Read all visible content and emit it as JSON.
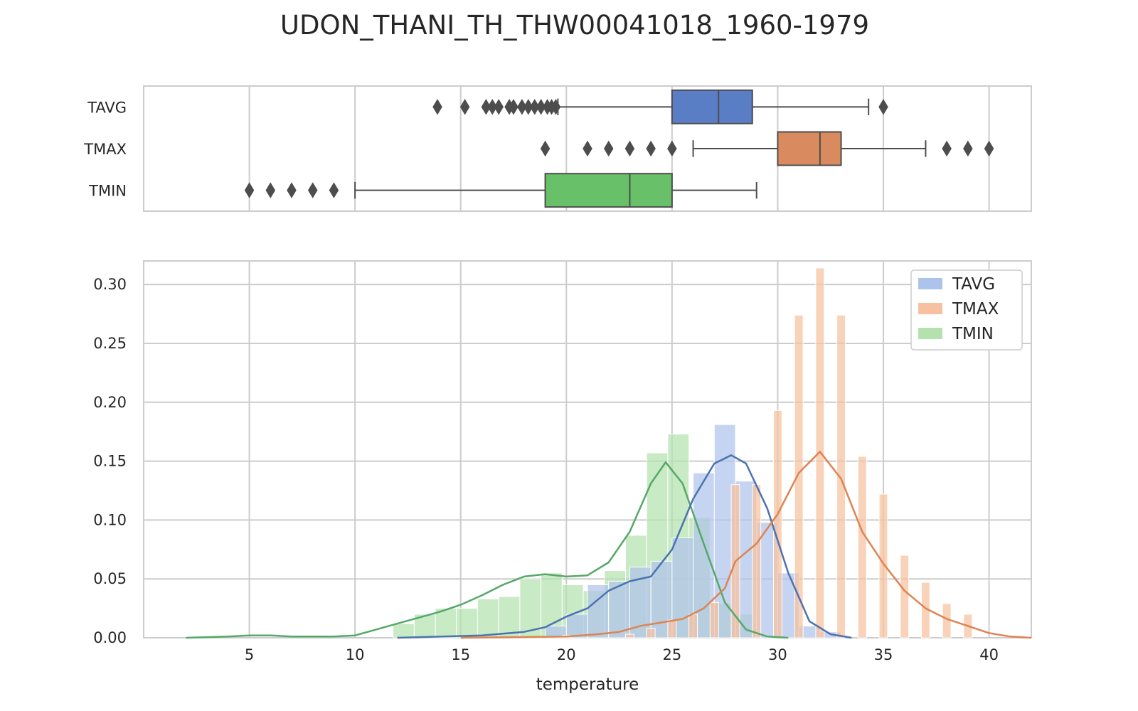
{
  "title": "UDON_THANI_TH_THW00041018_1960-1979",
  "xlabel": "temperature",
  "x_ticks": [
    "5",
    "10",
    "15",
    "20",
    "25",
    "30",
    "35",
    "40"
  ],
  "y_ticks": [
    "0.00",
    "0.05",
    "0.10",
    "0.15",
    "0.20",
    "0.25",
    "0.30"
  ],
  "legend": [
    "TAVG",
    "TMAX",
    "TMIN"
  ],
  "colors": {
    "TAVG": "#4c72b0",
    "TMAX": "#dd8452",
    "TMIN": "#55a868",
    "TAVG_box": "#5a7ec5",
    "TMAX_box": "#d98b5f",
    "TMIN_box": "#68c069",
    "TAVG_hist": "#aec3ea",
    "TMAX_hist": "#f7c0a0",
    "TMIN_hist": "#b3e2ae",
    "grid": "#cccccc",
    "frame": "#cccccc",
    "whisker": "#4d4d4d"
  },
  "chart_data": [
    {
      "type": "box",
      "orientation": "horizontal",
      "xlim": [
        0,
        42
      ],
      "categories": [
        "TAVG",
        "TMAX",
        "TMIN"
      ],
      "boxes": [
        {
          "name": "TAVG",
          "whislo": 19.6,
          "q1": 25.0,
          "median": 27.2,
          "q3": 28.8,
          "whishi": 34.3,
          "fliers": [
            13.9,
            15.2,
            16.2,
            16.5,
            16.8,
            17.3,
            17.5,
            17.9,
            18.2,
            18.5,
            18.8,
            19.1,
            19.3,
            19.5,
            35.0
          ]
        },
        {
          "name": "TMAX",
          "whislo": 26.0,
          "q1": 30.0,
          "median": 32.0,
          "q3": 33.0,
          "whishi": 37.0,
          "fliers": [
            19.0,
            21.0,
            22.0,
            23.0,
            24.0,
            25.0,
            38.0,
            39.0,
            40.0
          ]
        },
        {
          "name": "TMIN",
          "whislo": 10.0,
          "q1": 19.0,
          "median": 23.0,
          "q3": 25.0,
          "whishi": 29.0,
          "fliers": [
            5.0,
            6.0,
            7.0,
            8.0,
            9.0
          ]
        }
      ]
    },
    {
      "type": "histogram",
      "xlabel": "temperature",
      "xlim": [
        0,
        42
      ],
      "ylim": [
        0,
        0.32
      ],
      "grid": true,
      "legend_position": "top-right",
      "series": [
        {
          "name": "TMIN",
          "bins": [
            [
              11.8,
              12.8,
              0.012
            ],
            [
              12.8,
              13.8,
              0.02
            ],
            [
              13.8,
              14.8,
              0.025
            ],
            [
              14.8,
              15.8,
              0.025
            ],
            [
              15.8,
              16.8,
              0.033
            ],
            [
              16.8,
              17.8,
              0.035
            ],
            [
              17.8,
              18.8,
              0.05
            ],
            [
              18.8,
              19.8,
              0.055
            ],
            [
              19.8,
              20.8,
              0.045
            ],
            [
              20.8,
              21.8,
              0.04
            ],
            [
              21.8,
              22.8,
              0.057
            ],
            [
              22.8,
              23.8,
              0.087
            ],
            [
              23.8,
              24.8,
              0.157
            ],
            [
              24.8,
              25.8,
              0.173
            ],
            [
              25.8,
              26.8,
              0.102
            ],
            [
              26.8,
              27.8,
              0.029
            ],
            [
              27.8,
              28.8,
              0.02
            ]
          ],
          "kde": [
            [
              2.0,
              0.0
            ],
            [
              4.0,
              0.001
            ],
            [
              5.0,
              0.002
            ],
            [
              6.0,
              0.002
            ],
            [
              7.0,
              0.001
            ],
            [
              8.0,
              0.001
            ],
            [
              9.0,
              0.001
            ],
            [
              10.0,
              0.002
            ],
            [
              11.0,
              0.007
            ],
            [
              12.0,
              0.012
            ],
            [
              13.0,
              0.017
            ],
            [
              14.0,
              0.022
            ],
            [
              15.0,
              0.028
            ],
            [
              16.0,
              0.036
            ],
            [
              17.0,
              0.045
            ],
            [
              18.0,
              0.052
            ],
            [
              19.0,
              0.054
            ],
            [
              20.0,
              0.052
            ],
            [
              21.0,
              0.053
            ],
            [
              22.0,
              0.064
            ],
            [
              23.0,
              0.09
            ],
            [
              24.0,
              0.131
            ],
            [
              24.7,
              0.149
            ],
            [
              25.5,
              0.131
            ],
            [
              26.5,
              0.08
            ],
            [
              27.5,
              0.03
            ],
            [
              28.5,
              0.007
            ],
            [
              29.5,
              0.001
            ],
            [
              30.5,
              0.0
            ]
          ]
        },
        {
          "name": "TAVG",
          "bins": [
            [
              19.0,
              20.0,
              0.01
            ],
            [
              20.0,
              21.0,
              0.02
            ],
            [
              21.0,
              22.0,
              0.045
            ],
            [
              22.0,
              23.0,
              0.048
            ],
            [
              23.0,
              24.0,
              0.06
            ],
            [
              24.0,
              25.0,
              0.065
            ],
            [
              25.0,
              26.0,
              0.085
            ],
            [
              26.0,
              27.0,
              0.14
            ],
            [
              27.0,
              28.0,
              0.181
            ],
            [
              28.0,
              29.0,
              0.133
            ],
            [
              29.0,
              30.0,
              0.098
            ],
            [
              30.0,
              31.0,
              0.055
            ],
            [
              31.0,
              32.0,
              0.01
            ],
            [
              32.0,
              33.0,
              0.005
            ]
          ],
          "kde": [
            [
              12.0,
              0.0
            ],
            [
              16.0,
              0.002
            ],
            [
              18.0,
              0.005
            ],
            [
              19.0,
              0.009
            ],
            [
              20.0,
              0.018
            ],
            [
              21.0,
              0.025
            ],
            [
              22.0,
              0.04
            ],
            [
              23.0,
              0.048
            ],
            [
              24.0,
              0.052
            ],
            [
              25.0,
              0.075
            ],
            [
              26.0,
              0.118
            ],
            [
              27.0,
              0.148
            ],
            [
              27.8,
              0.155
            ],
            [
              28.5,
              0.148
            ],
            [
              29.5,
              0.11
            ],
            [
              30.5,
              0.055
            ],
            [
              31.5,
              0.014
            ],
            [
              32.5,
              0.003
            ],
            [
              33.5,
              0.0
            ]
          ]
        },
        {
          "name": "TMAX",
          "bins": [
            [
              19.8,
              20.2,
              0.002
            ],
            [
              22.8,
              23.2,
              0.003
            ],
            [
              23.8,
              24.2,
              0.008
            ],
            [
              24.8,
              25.2,
              0.015
            ],
            [
              25.8,
              26.2,
              0.02
            ],
            [
              26.8,
              27.2,
              0.03
            ],
            [
              27.8,
              28.2,
              0.13
            ],
            [
              28.8,
              29.2,
              0.13
            ],
            [
              29.8,
              30.2,
              0.193
            ],
            [
              30.8,
              31.2,
              0.274
            ],
            [
              31.8,
              32.2,
              0.314
            ],
            [
              32.8,
              33.2,
              0.274
            ],
            [
              33.8,
              34.2,
              0.154
            ],
            [
              34.8,
              35.2,
              0.122
            ],
            [
              35.8,
              36.2,
              0.07
            ],
            [
              36.8,
              37.2,
              0.047
            ],
            [
              37.8,
              38.2,
              0.029
            ],
            [
              38.8,
              39.2,
              0.02
            ]
          ],
          "kde": [
            [
              15.0,
              0.0
            ],
            [
              20.0,
              0.001
            ],
            [
              21.5,
              0.003
            ],
            [
              22.5,
              0.005
            ],
            [
              23.5,
              0.01
            ],
            [
              24.5,
              0.013
            ],
            [
              25.5,
              0.016
            ],
            [
              26.5,
              0.025
            ],
            [
              27.5,
              0.042
            ],
            [
              28.0,
              0.065
            ],
            [
              29.0,
              0.08
            ],
            [
              30.0,
              0.105
            ],
            [
              31.0,
              0.14
            ],
            [
              32.0,
              0.158
            ],
            [
              33.0,
              0.135
            ],
            [
              34.0,
              0.09
            ],
            [
              35.0,
              0.063
            ],
            [
              36.0,
              0.04
            ],
            [
              37.0,
              0.025
            ],
            [
              38.0,
              0.016
            ],
            [
              39.0,
              0.01
            ],
            [
              40.0,
              0.004
            ],
            [
              41.0,
              0.001
            ],
            [
              42.0,
              0.0
            ]
          ]
        }
      ]
    }
  ]
}
